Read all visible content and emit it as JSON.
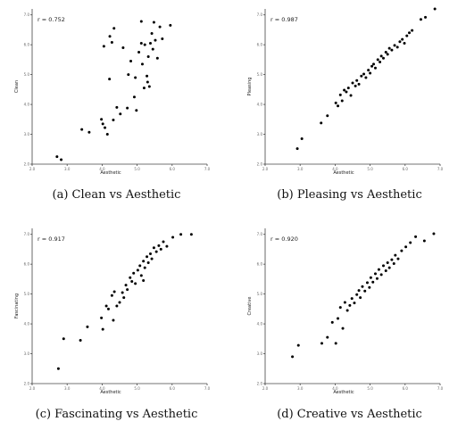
{
  "chart_data": [
    {
      "type": "scatter",
      "caption": "(a) Clean vs Aesthetic",
      "annotation": "r = 0.752",
      "xlabel": "Aesthetic",
      "ylabel": "Clean",
      "xlim": [
        2.0,
        7.0
      ],
      "ylim": [
        2.0,
        7.2
      ],
      "x_ticks": [
        "2.0",
        "3.0",
        "4.0",
        "5.0",
        "6.0",
        "7.0"
      ],
      "y_ticks": [
        "2.0",
        "3.0",
        "4.0",
        "5.0",
        "6.0",
        "7.0"
      ],
      "grid": false,
      "points": [
        [
          2.71,
          2.25
        ],
        [
          2.83,
          2.15
        ],
        [
          3.42,
          3.16
        ],
        [
          3.63,
          3.07
        ],
        [
          3.98,
          3.5
        ],
        [
          4.02,
          3.35
        ],
        [
          4.05,
          5.95
        ],
        [
          4.08,
          3.22
        ],
        [
          4.15,
          3.0
        ],
        [
          4.21,
          4.85
        ],
        [
          4.22,
          6.28
        ],
        [
          4.28,
          6.08
        ],
        [
          4.34,
          6.55
        ],
        [
          4.32,
          3.48
        ],
        [
          4.42,
          3.9
        ],
        [
          4.52,
          3.68
        ],
        [
          4.6,
          5.9
        ],
        [
          4.72,
          3.88
        ],
        [
          4.75,
          5.0
        ],
        [
          4.82,
          5.45
        ],
        [
          4.92,
          4.25
        ],
        [
          4.95,
          4.9
        ],
        [
          4.98,
          3.8
        ],
        [
          5.05,
          5.75
        ],
        [
          5.12,
          6.05
        ],
        [
          5.12,
          6.78
        ],
        [
          5.15,
          5.35
        ],
        [
          5.2,
          4.55
        ],
        [
          5.22,
          6.0
        ],
        [
          5.28,
          4.95
        ],
        [
          5.3,
          4.75
        ],
        [
          5.32,
          5.6
        ],
        [
          5.35,
          4.6
        ],
        [
          5.38,
          6.05
        ],
        [
          5.42,
          6.38
        ],
        [
          5.45,
          5.85
        ],
        [
          5.52,
          6.15
        ],
        [
          5.58,
          5.55
        ],
        [
          5.65,
          6.6
        ],
        [
          5.72,
          6.2
        ],
        [
          5.95,
          6.65
        ],
        [
          5.48,
          6.75
        ]
      ]
    },
    {
      "type": "scatter",
      "caption": "(b) Pleasing vs Aesthetic",
      "annotation": "r = 0.987",
      "xlabel": "Aesthetic",
      "ylabel": "Pleasing",
      "xlim": [
        2.0,
        7.0
      ],
      "ylim": [
        2.0,
        7.2
      ],
      "x_ticks": [
        "2.0",
        "3.0",
        "4.0",
        "5.0",
        "6.0",
        "7.0"
      ],
      "y_ticks": [
        "2.0",
        "3.0",
        "4.0",
        "5.0",
        "6.0",
        "7.0"
      ],
      "grid": false,
      "points": [
        [
          2.92,
          2.52
        ],
        [
          3.05,
          2.85
        ],
        [
          3.6,
          3.38
        ],
        [
          3.78,
          3.62
        ],
        [
          4.02,
          4.05
        ],
        [
          4.08,
          3.95
        ],
        [
          4.15,
          4.32
        ],
        [
          4.2,
          4.12
        ],
        [
          4.26,
          4.48
        ],
        [
          4.32,
          4.42
        ],
        [
          4.38,
          4.55
        ],
        [
          4.45,
          4.3
        ],
        [
          4.5,
          4.72
        ],
        [
          4.58,
          4.62
        ],
        [
          4.62,
          4.8
        ],
        [
          4.68,
          4.68
        ],
        [
          4.75,
          4.95
        ],
        [
          4.82,
          5.02
        ],
        [
          4.88,
          4.9
        ],
        [
          4.95,
          5.15
        ],
        [
          5.0,
          5.05
        ],
        [
          5.05,
          5.28
        ],
        [
          5.1,
          5.35
        ],
        [
          5.15,
          5.22
        ],
        [
          5.22,
          5.5
        ],
        [
          5.28,
          5.42
        ],
        [
          5.32,
          5.62
        ],
        [
          5.38,
          5.55
        ],
        [
          5.45,
          5.75
        ],
        [
          5.5,
          5.68
        ],
        [
          5.55,
          5.88
        ],
        [
          5.62,
          5.82
        ],
        [
          5.7,
          5.98
        ],
        [
          5.78,
          5.92
        ],
        [
          5.85,
          6.1
        ],
        [
          5.92,
          6.18
        ],
        [
          5.98,
          6.05
        ],
        [
          6.05,
          6.3
        ],
        [
          6.12,
          6.4
        ],
        [
          6.2,
          6.48
        ],
        [
          6.45,
          6.85
        ],
        [
          6.58,
          6.92
        ],
        [
          6.85,
          7.2
        ]
      ]
    },
    {
      "type": "scatter",
      "caption": "(c) Fascinating vs Aesthetic",
      "annotation": "r = 0.917",
      "xlabel": "Aesthetic",
      "ylabel": "Fascinating",
      "xlim": [
        2.0,
        7.0
      ],
      "ylim": [
        2.0,
        7.2
      ],
      "x_ticks": [
        "2.0",
        "3.0",
        "4.0",
        "5.0",
        "6.0",
        "7.0"
      ],
      "y_ticks": [
        "2.0",
        "3.0",
        "4.0",
        "5.0",
        "6.0",
        "7.0"
      ],
      "grid": false,
      "points": [
        [
          2.75,
          2.5
        ],
        [
          2.9,
          3.5
        ],
        [
          3.38,
          3.45
        ],
        [
          3.58,
          3.9
        ],
        [
          3.98,
          4.2
        ],
        [
          4.02,
          3.82
        ],
        [
          4.12,
          4.6
        ],
        [
          4.18,
          4.5
        ],
        [
          4.28,
          4.95
        ],
        [
          4.35,
          5.08
        ],
        [
          4.32,
          4.12
        ],
        [
          4.42,
          4.6
        ],
        [
          4.5,
          4.72
        ],
        [
          4.58,
          5.05
        ],
        [
          4.62,
          4.88
        ],
        [
          4.68,
          5.3
        ],
        [
          4.72,
          5.15
        ],
        [
          4.8,
          5.55
        ],
        [
          4.85,
          5.42
        ],
        [
          4.9,
          5.7
        ],
        [
          4.95,
          5.35
        ],
        [
          5.02,
          5.8
        ],
        [
          5.08,
          5.95
        ],
        [
          5.12,
          5.62
        ],
        [
          5.18,
          6.1
        ],
        [
          5.22,
          5.88
        ],
        [
          5.28,
          6.25
        ],
        [
          5.32,
          6.05
        ],
        [
          5.38,
          6.35
        ],
        [
          5.42,
          6.18
        ],
        [
          5.48,
          6.55
        ],
        [
          5.55,
          6.42
        ],
        [
          5.62,
          6.62
        ],
        [
          5.68,
          6.5
        ],
        [
          5.75,
          6.75
        ],
        [
          5.85,
          6.6
        ],
        [
          6.02,
          6.9
        ],
        [
          6.25,
          7.0
        ],
        [
          6.55,
          7.0
        ],
        [
          5.18,
          5.45
        ]
      ]
    },
    {
      "type": "scatter",
      "caption": "(d) Creative vs Aesthetic",
      "annotation": "r = 0.920",
      "xlabel": "Aesthetic",
      "ylabel": "Creative",
      "xlim": [
        2.0,
        7.0
      ],
      "ylim": [
        2.0,
        7.2
      ],
      "x_ticks": [
        "2.0",
        "3.0",
        "4.0",
        "5.0",
        "6.0",
        "7.0"
      ],
      "y_ticks": [
        "2.0",
        "3.0",
        "4.0",
        "5.0",
        "6.0",
        "7.0"
      ],
      "grid": false,
      "points": [
        [
          2.78,
          2.9
        ],
        [
          2.95,
          3.28
        ],
        [
          3.62,
          3.35
        ],
        [
          3.78,
          3.55
        ],
        [
          3.92,
          4.05
        ],
        [
          4.02,
          3.35
        ],
        [
          4.08,
          4.18
        ],
        [
          4.15,
          4.55
        ],
        [
          4.22,
          3.85
        ],
        [
          4.28,
          4.72
        ],
        [
          4.35,
          4.45
        ],
        [
          4.42,
          4.62
        ],
        [
          4.48,
          4.85
        ],
        [
          4.55,
          4.7
        ],
        [
          4.62,
          4.98
        ],
        [
          4.68,
          5.12
        ],
        [
          4.72,
          4.88
        ],
        [
          4.78,
          5.25
        ],
        [
          4.85,
          5.1
        ],
        [
          4.92,
          5.38
        ],
        [
          4.98,
          5.22
        ],
        [
          5.02,
          5.55
        ],
        [
          5.08,
          5.4
        ],
        [
          5.15,
          5.68
        ],
        [
          5.2,
          5.52
        ],
        [
          5.25,
          5.82
        ],
        [
          5.32,
          5.65
        ],
        [
          5.38,
          5.95
        ],
        [
          5.45,
          5.78
        ],
        [
          5.5,
          6.05
        ],
        [
          5.55,
          5.88
        ],
        [
          5.62,
          6.15
        ],
        [
          5.68,
          6.02
        ],
        [
          5.72,
          6.3
        ],
        [
          5.8,
          6.18
        ],
        [
          5.9,
          6.45
        ],
        [
          6.02,
          6.58
        ],
        [
          6.15,
          6.72
        ],
        [
          6.3,
          6.92
        ],
        [
          6.55,
          6.78
        ],
        [
          6.82,
          7.02
        ]
      ]
    }
  ]
}
